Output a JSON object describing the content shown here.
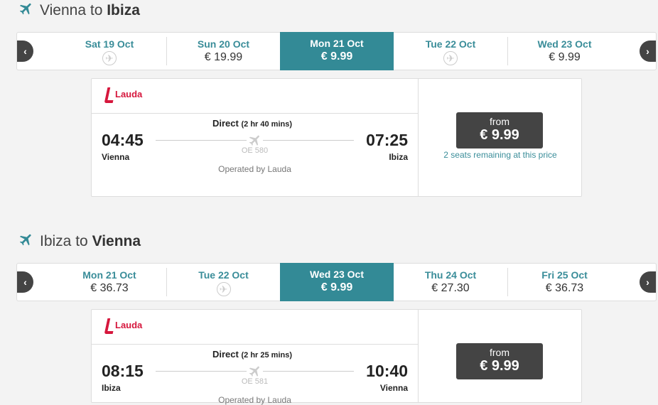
{
  "outbound": {
    "from": "Vienna",
    "to_word": "to",
    "to": "Ibiza",
    "days": [
      {
        "date": "Sat 19 Oct",
        "price": null
      },
      {
        "date": "Sun 20 Oct",
        "price": "€ 19.99"
      },
      {
        "date": "Mon 21 Oct",
        "price": "€ 9.99",
        "selected": true
      },
      {
        "date": "Tue 22 Oct",
        "price": null
      },
      {
        "date": "Wed 23 Oct",
        "price": "€ 9.99"
      }
    ],
    "flight": {
      "airline": "Lauda",
      "dep_time": "04:45",
      "dep_city": "Vienna",
      "arr_time": "07:25",
      "arr_city": "Ibiza",
      "stops": "Direct",
      "duration": "(2 hr 40 mins)",
      "flight_no": "OE 580",
      "operated": "Operated by Lauda",
      "from_label": "from",
      "price": "€ 9.99",
      "seats": "2 seats remaining at this price"
    }
  },
  "inbound": {
    "from": "Ibiza",
    "to_word": "to",
    "to": "Vienna",
    "days": [
      {
        "date": "Mon 21 Oct",
        "price": "€ 36.73"
      },
      {
        "date": "Tue 22 Oct",
        "price": null
      },
      {
        "date": "Wed 23 Oct",
        "price": "€ 9.99",
        "selected": true
      },
      {
        "date": "Thu 24 Oct",
        "price": "€ 27.30"
      },
      {
        "date": "Fri 25 Oct",
        "price": "€ 36.73"
      }
    ],
    "flight": {
      "airline": "Lauda",
      "dep_time": "08:15",
      "dep_city": "Ibiza",
      "arr_time": "10:40",
      "arr_city": "Vienna",
      "stops": "Direct",
      "duration": "(2 hr 25 mins)",
      "flight_no": "OE 581",
      "operated": "Operated by Lauda",
      "from_label": "from",
      "price": "€ 9.99"
    }
  },
  "nav": {
    "prev": "‹",
    "next": "›"
  },
  "colors": {
    "accent": "#338a96",
    "airline": "#d6173d",
    "button": "#444444"
  }
}
